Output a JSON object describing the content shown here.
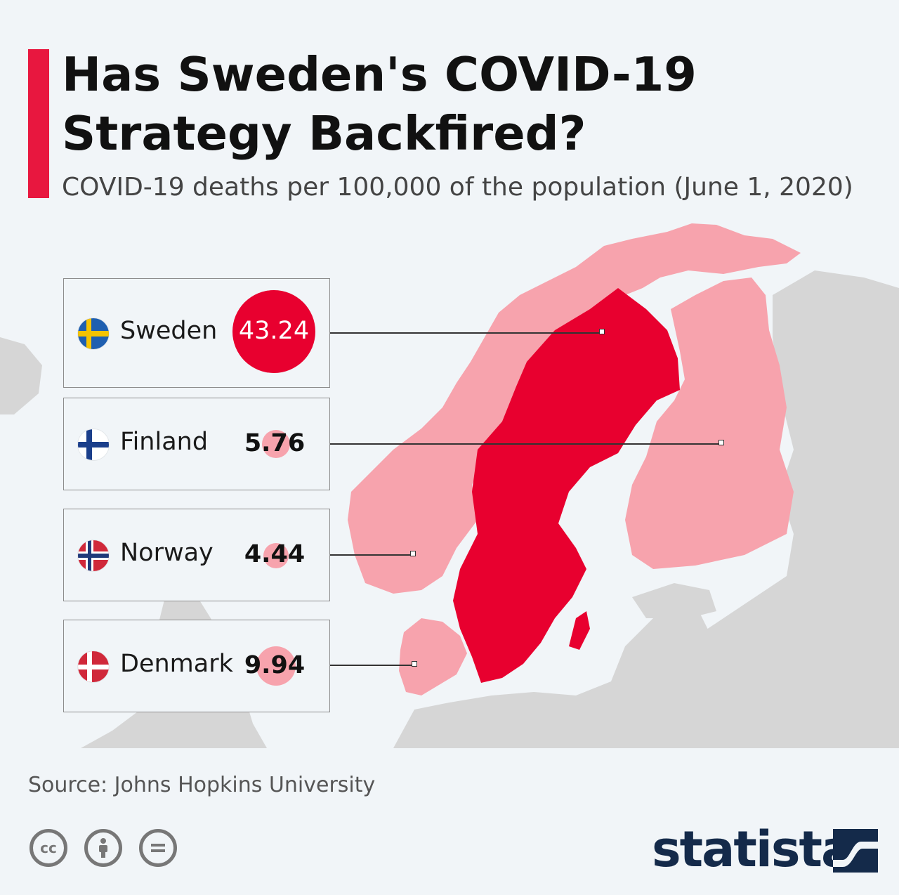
{
  "header": {
    "title": "Has Sweden's COVID-19 Strategy Backfired?",
    "subtitle": "COVID-19 deaths per 100,000 of the population (June 1, 2020)"
  },
  "chart_data": {
    "type": "map",
    "metric": "COVID-19 deaths per 100,000 of the population",
    "date": "June 1, 2020",
    "entries": [
      {
        "country": "Sweden",
        "value": 43.24
      },
      {
        "country": "Finland",
        "value": 5.76
      },
      {
        "country": "Norway",
        "value": 4.44
      },
      {
        "country": "Denmark",
        "value": 9.94
      }
    ]
  },
  "labels": {
    "sweden": {
      "name": "Sweden",
      "value": "43.24"
    },
    "finland": {
      "name": "Finland",
      "value": "5.76"
    },
    "norway": {
      "name": "Norway",
      "value": "4.44"
    },
    "denmark": {
      "name": "Denmark",
      "value": "9.94"
    }
  },
  "footer": {
    "source": "Source: Johns Hopkins University",
    "brand": "statista"
  },
  "colors": {
    "accent": "#e8173f",
    "sweden_fill": "#e8002f",
    "nordic_fill": "#f7a3ad",
    "land_gray": "#d6d6d6",
    "background": "#f1f5f8",
    "brand_navy": "#142a4a"
  },
  "icons": [
    "cc-icon",
    "attribution-icon",
    "no-derivatives-icon",
    "statista-logo-icon"
  ]
}
